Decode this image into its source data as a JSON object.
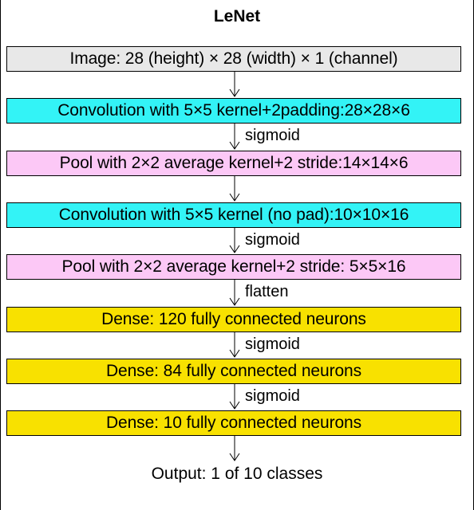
{
  "title": "LeNet",
  "colors": {
    "input": "#e8e8e8",
    "convolution": "#33f3f6",
    "pool": "#fcc8f6",
    "dense": "#f8e100",
    "border": "#000000"
  },
  "layers": [
    {
      "label": "Image: 28 (height) × 28 (width) × 1 (channel)",
      "kind": "input"
    },
    {
      "label": "Convolution with 5×5 kernel+2padding:28×28×6",
      "kind": "convolution"
    },
    {
      "label": "Pool with 2×2 average kernel+2 stride:14×14×6",
      "kind": "pool"
    },
    {
      "label": "Convolution with 5×5 kernel (no pad):10×10×16",
      "kind": "convolution"
    },
    {
      "label": "Pool with 2×2 average kernel+2 stride: 5×5×16",
      "kind": "pool"
    },
    {
      "label": "Dense: 120 fully connected neurons",
      "kind": "dense"
    },
    {
      "label": "Dense: 84 fully connected neurons",
      "kind": "dense"
    },
    {
      "label": "Dense: 10 fully connected neurons",
      "kind": "dense"
    }
  ],
  "edges": [
    {
      "label": ""
    },
    {
      "label": "sigmoid"
    },
    {
      "label": ""
    },
    {
      "label": "sigmoid"
    },
    {
      "label": "flatten"
    },
    {
      "label": "sigmoid"
    },
    {
      "label": "sigmoid"
    },
    {
      "label": ""
    }
  ],
  "output": "Output: 1 of 10 classes"
}
